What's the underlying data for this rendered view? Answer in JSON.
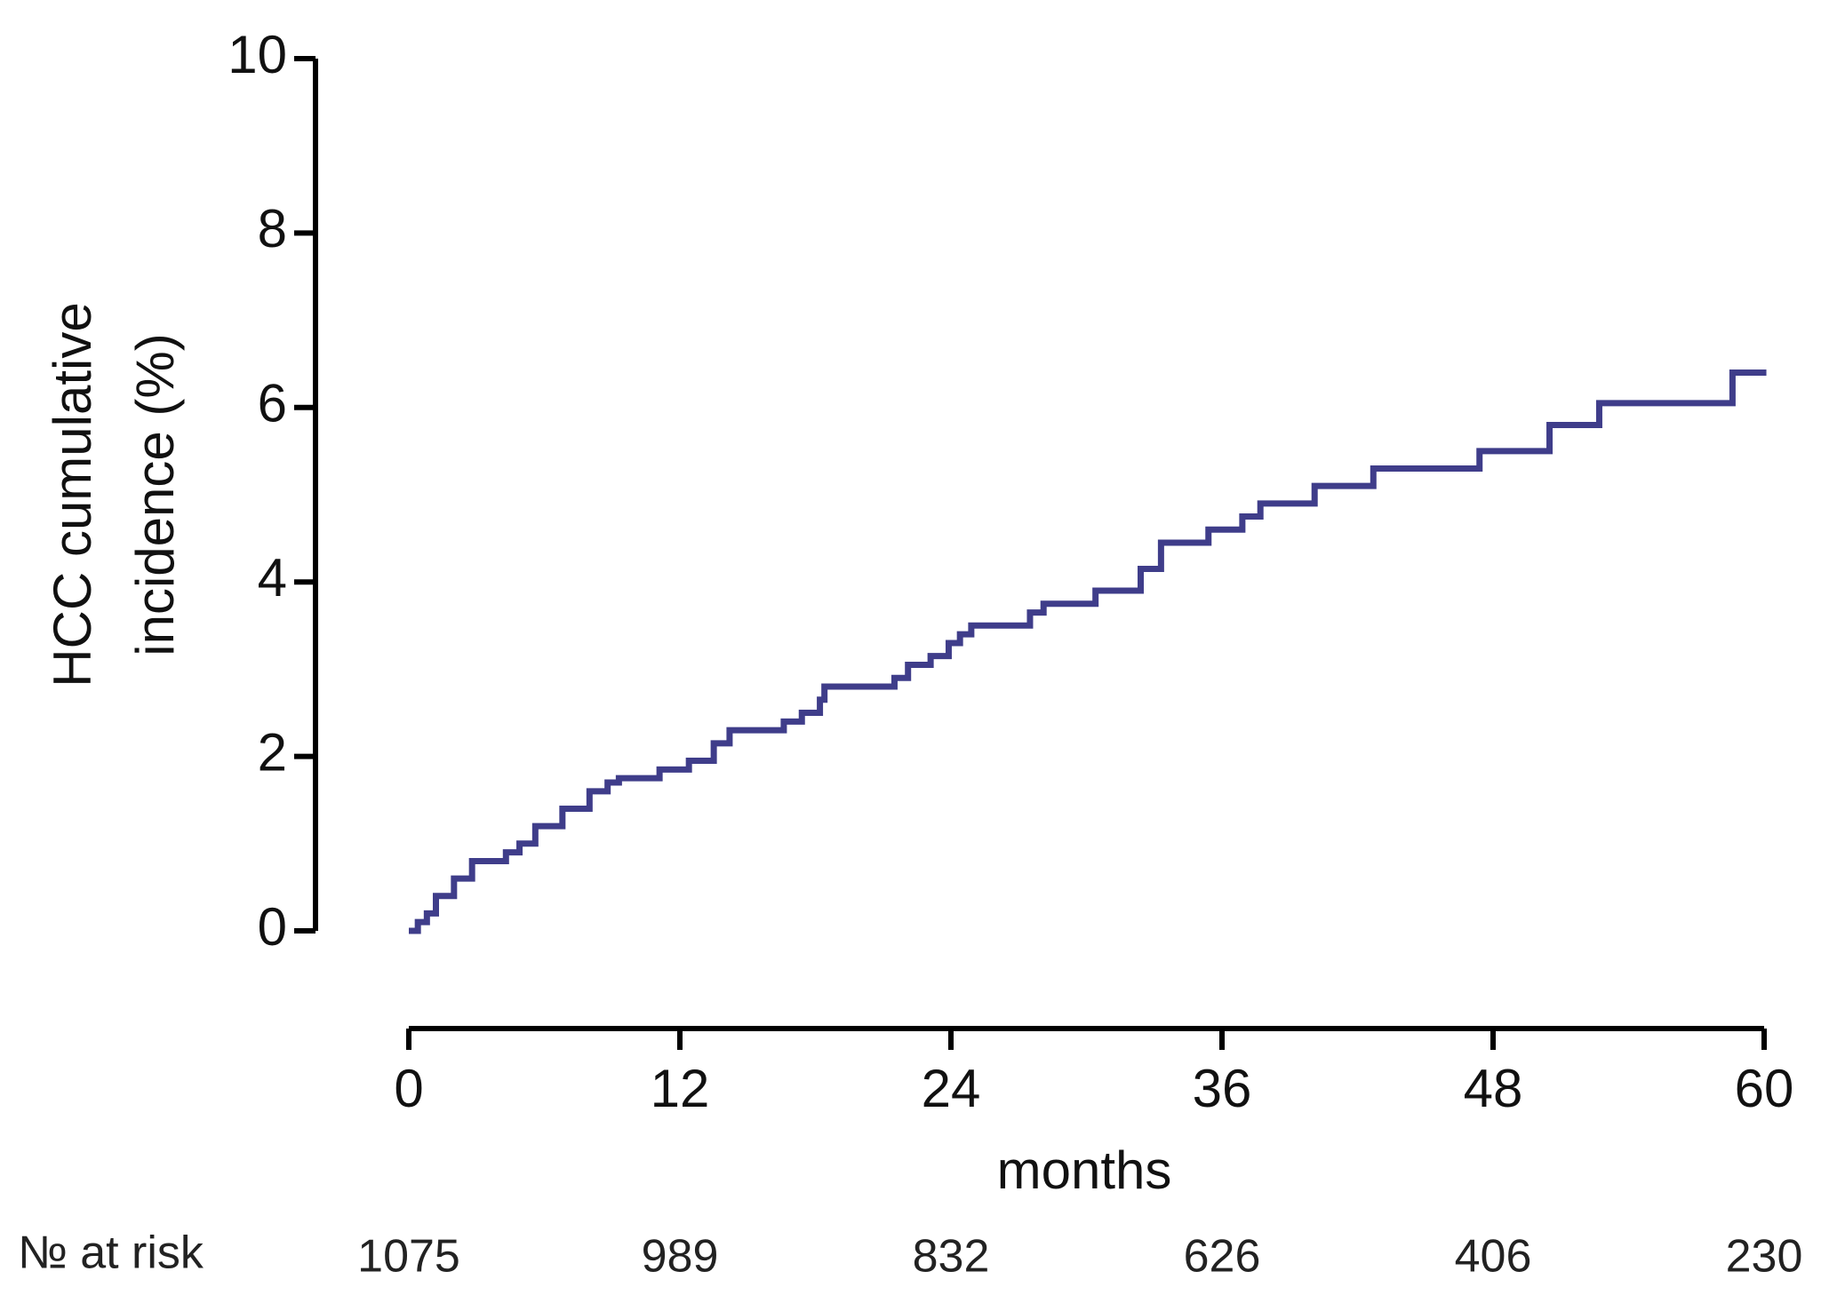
{
  "chart_data": {
    "type": "step",
    "ylabel": [
      "HCC cumulative",
      "incidence (%)"
    ],
    "xlabel": "months",
    "x": [
      0,
      0.4,
      0.8,
      1.2,
      2.0,
      2.8,
      4.3,
      4.9,
      5.6,
      6.8,
      8.0,
      8.8,
      9.3,
      11.1,
      12.4,
      13.5,
      14.2,
      16.6,
      17.4,
      18.2,
      18.4,
      21.5,
      22.1,
      23.1,
      23.9,
      24.4,
      24.9,
      27.5,
      28.1,
      30.4,
      32.4,
      33.3,
      35.4,
      36.9,
      37.7,
      40.1,
      42.7,
      47.4,
      50.5,
      52.7,
      58.6,
      60.1
    ],
    "values": [
      0,
      0.1,
      0.2,
      0.4,
      0.6,
      0.8,
      0.9,
      1.0,
      1.2,
      1.4,
      1.6,
      1.7,
      1.75,
      1.85,
      1.95,
      2.15,
      2.3,
      2.4,
      2.5,
      2.65,
      2.8,
      2.9,
      3.05,
      3.15,
      3.3,
      3.4,
      3.5,
      3.65,
      3.75,
      3.9,
      4.15,
      4.45,
      4.6,
      4.75,
      4.9,
      5.1,
      5.3,
      5.5,
      5.8,
      6.05,
      6.4,
      6.4
    ],
    "color": "#3f3d8a",
    "xlim": [
      0,
      60
    ],
    "xticks": [
      0,
      12,
      24,
      36,
      48,
      60
    ],
    "ylim": [
      0,
      10
    ],
    "yticks": [
      0,
      2,
      4,
      6,
      8,
      10
    ],
    "risk_label": "№ at risk",
    "at_risk": [
      1075,
      989,
      832,
      626,
      406,
      230
    ]
  }
}
